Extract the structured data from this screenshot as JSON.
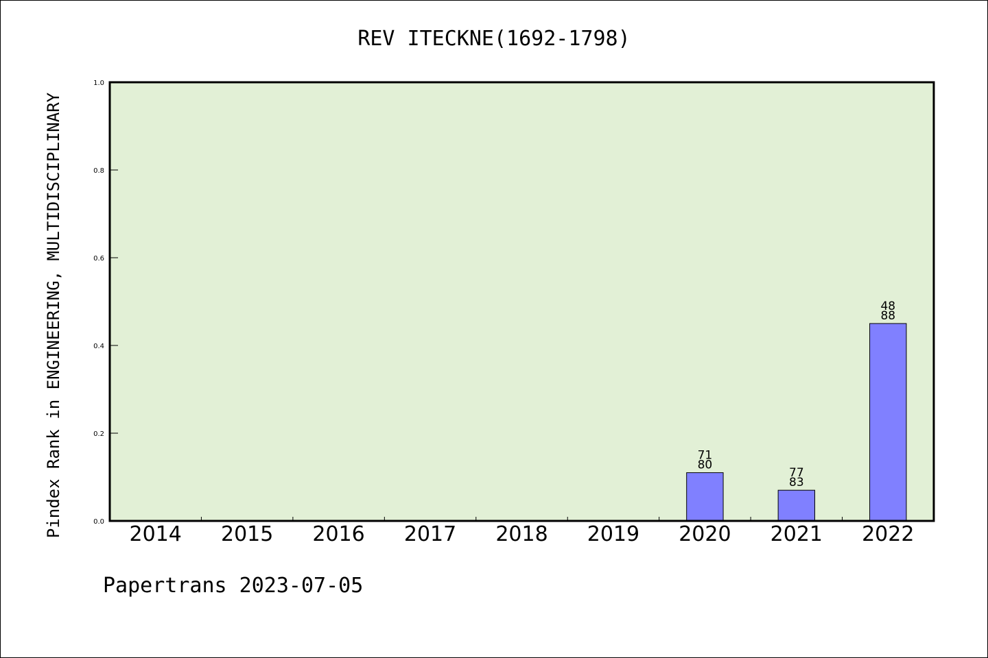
{
  "chart_data": {
    "type": "bar",
    "title": "REV ITECKNE(1692-1798)",
    "xlabel": "",
    "ylabel": "Pindex Rank in ENGINEERING, MULTIDISCIPLINARY",
    "categories": [
      "2014",
      "2015",
      "2016",
      "2017",
      "2018",
      "2019",
      "2020",
      "2021",
      "2022"
    ],
    "values": [
      0,
      0,
      0,
      0,
      0,
      0,
      0.11,
      0.07,
      0.45
    ],
    "bar_labels": [
      null,
      null,
      null,
      null,
      null,
      null,
      {
        "rank": "71",
        "total": "80"
      },
      {
        "rank": "77",
        "total": "83"
      },
      {
        "rank": "48",
        "total": "88"
      }
    ],
    "ylim": [
      0,
      1.0
    ],
    "yticks": [
      "0.0",
      "0.2",
      "0.4",
      "0.6",
      "0.8",
      "1.0"
    ],
    "grid": false,
    "legend": "none",
    "colors": {
      "plot_background": "#e2f0d6",
      "bar_fill": "#8080ff",
      "bar_edge": "#000000"
    }
  },
  "footer": "Papertrans 2023-07-05"
}
